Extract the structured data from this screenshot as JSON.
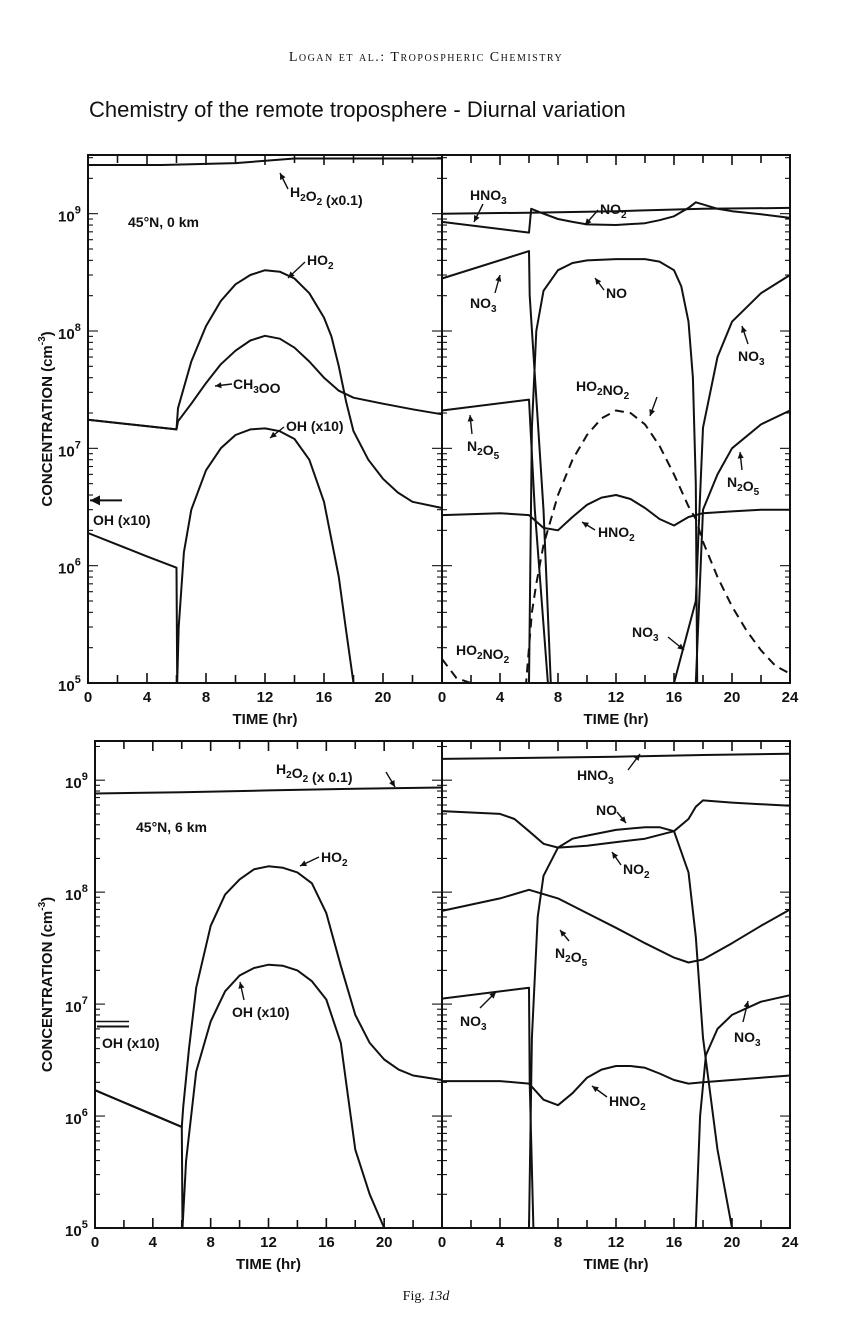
{
  "header": "Logan et al.: Tropospheric Chemistry",
  "title": "Chemistry of the remote troposphere - Diurnal variation",
  "caption": {
    "prefix": "Fig.",
    "number": "13d"
  },
  "chart_data": [
    {
      "type": "line",
      "panel": "top-left",
      "annotation": "45°N, 0 km",
      "xlabel": "TIME (hr)",
      "ylabel": "CONCENTRATION (cm-3)",
      "xlim": [
        0,
        24
      ],
      "ylim_log10": [
        5,
        9.5
      ],
      "yscale": "log",
      "xticks": [
        0,
        4,
        8,
        12,
        16,
        20
      ],
      "yticks": [
        {
          "exp": 5,
          "label": "10",
          "sup": "5"
        },
        {
          "exp": 6,
          "label": "10",
          "sup": "6"
        },
        {
          "exp": 7,
          "label": "10",
          "sup": "7"
        },
        {
          "exp": 8,
          "label": "10",
          "sup": "8"
        },
        {
          "exp": 9,
          "label": "10",
          "sup": "9"
        }
      ],
      "marker": {
        "name": "OH (x10) mean",
        "y": 3600000.0
      },
      "series": [
        {
          "name": "H2O2 (x0.1)",
          "style": "solid",
          "x": [
            0,
            5,
            10,
            14,
            18,
            24
          ],
          "y": [
            2600000000.0,
            2600000000.0,
            2700000000.0,
            2950000000.0,
            2950000000.0,
            2950000000.0
          ]
        },
        {
          "name": "HO2",
          "style": "solid",
          "x": [
            0,
            6,
            6.1,
            7,
            8,
            9,
            10,
            11,
            12,
            13,
            14,
            15,
            16,
            16.5,
            17,
            17.5,
            18,
            19,
            20,
            21,
            22,
            24
          ],
          "y": [
            17500000.0,
            14500000.0,
            22000000.0,
            55000000.0,
            110000000.0,
            180000000.0,
            250000000.0,
            300000000.0,
            330000000.0,
            320000000.0,
            280000000.0,
            210000000.0,
            130000000.0,
            90000000.0,
            50000000.0,
            25000000.0,
            14000000.0,
            8000000.0,
            5500000.0,
            4200000.0,
            3500000.0,
            3100000.0
          ]
        },
        {
          "name": "CH3OO",
          "style": "solid",
          "x": [
            0,
            6,
            6.1,
            7,
            8,
            9,
            10,
            11,
            12,
            13,
            14,
            15,
            16,
            17,
            18,
            20,
            22,
            24
          ],
          "y": [
            17500000.0,
            14500000.0,
            17000000.0,
            24000000.0,
            36000000.0,
            52000000.0,
            68000000.0,
            83000000.0,
            91000000.0,
            86000000.0,
            72000000.0,
            55000000.0,
            40000000.0,
            31000000.0,
            27000000.0,
            24000000.0,
            21500000.0,
            19500000.0
          ]
        },
        {
          "name": "OH (x10)",
          "style": "solid",
          "x": [
            0,
            4,
            6,
            6.05,
            6.15,
            6.5,
            7,
            8,
            9,
            10,
            11,
            12,
            13,
            14,
            15,
            16,
            17,
            17.5,
            18
          ],
          "y": [
            1900000.0,
            1200000.0,
            960000.0,
            100000.0,
            300000.0,
            1300000.0,
            3000000.0,
            6500000.0,
            10000000.0,
            13000000.0,
            14500000.0,
            14800000.0,
            14000000.0,
            12000000.0,
            8000000.0,
            3500000.0,
            800000.0,
            280000.0,
            100000.0
          ]
        }
      ],
      "labels": [
        {
          "text": "H2O2 (x0.1)"
        },
        {
          "text": "HO2"
        },
        {
          "text": "CH3OO"
        },
        {
          "text": "OH (x10)"
        },
        {
          "text": "OH (x10)"
        }
      ]
    },
    {
      "type": "line",
      "panel": "top-right",
      "xlabel": "TIME (hr)",
      "xlim": [
        0,
        24
      ],
      "ylim_log10": [
        5,
        9.5
      ],
      "yscale": "log",
      "xticks": [
        0,
        4,
        8,
        12,
        16,
        20,
        24
      ],
      "series": [
        {
          "name": "HNO3",
          "style": "solid",
          "x": [
            0,
            6,
            12,
            18,
            24
          ],
          "y": [
            1000000000.0,
            1020000000.0,
            1050000000.0,
            1100000000.0,
            1120000000.0
          ]
        },
        {
          "name": "NO2",
          "style": "solid",
          "x": [
            0,
            6,
            6.15,
            7,
            8,
            9,
            10,
            12,
            14,
            15,
            16,
            17,
            17.5,
            18,
            19,
            20,
            22,
            24
          ],
          "y": [
            850000000.0,
            690000000.0,
            1100000000.0,
            1000000000.0,
            900000000.0,
            850000000.0,
            810000000.0,
            800000000.0,
            830000000.0,
            880000000.0,
            950000000.0,
            1120000000.0,
            1250000000.0,
            1200000000.0,
            1100000000.0,
            1050000000.0,
            990000000.0,
            920000000.0
          ]
        },
        {
          "name": "NO",
          "style": "solid",
          "x": [
            6.0,
            6.2,
            6.5,
            7,
            8,
            9,
            10,
            12,
            14,
            15,
            16,
            16.5,
            17,
            17.3,
            17.5,
            17.6
          ],
          "y": [
            100000.0,
            15000000.0,
            100000000.0,
            220000000.0,
            330000000.0,
            380000000.0,
            400000000.0,
            410000000.0,
            410000000.0,
            390000000.0,
            330000000.0,
            240000000.0,
            120000000.0,
            40000000.0,
            5000000.0,
            100000.0
          ]
        },
        {
          "name": "NO3 (night, before sunrise)",
          "style": "solid",
          "x": [
            0,
            6,
            6.05,
            7,
            7.5
          ],
          "y": [
            280000000.0,
            480000000.0,
            200000000.0,
            3000000.0,
            100000.0
          ]
        },
        {
          "name": "NO3 (after sunset)",
          "style": "solid",
          "x": [
            16,
            17.5,
            17.7,
            18,
            19,
            20,
            22,
            24
          ],
          "y": [
            100000.0,
            500000.0,
            2000000.0,
            15000000.0,
            60000000.0,
            120000000.0,
            210000000.0,
            300000000.0
          ]
        },
        {
          "name": "N2O5 (before sunrise)",
          "style": "solid",
          "x": [
            0,
            6,
            6.4,
            7.3
          ],
          "y": [
            21000000.0,
            26000000.0,
            3000000.0,
            100000.0
          ]
        },
        {
          "name": "N2O5 (after sunset)",
          "style": "solid",
          "x": [
            17.5,
            18,
            19,
            20,
            22,
            24
          ],
          "y": [
            100000.0,
            3000000.0,
            6000000.0,
            10000000.0,
            16000000.0,
            21000000.0
          ]
        },
        {
          "name": "HNO2",
          "style": "solid",
          "x": [
            0,
            4,
            6,
            7,
            8,
            9,
            10,
            11,
            12,
            13,
            14,
            15,
            16,
            17,
            18,
            20,
            22,
            24
          ],
          "y": [
            2700000.0,
            2800000.0,
            2700000.0,
            2100000.0,
            2000000.0,
            2600000.0,
            3300000.0,
            3800000.0,
            4000000.0,
            3700000.0,
            3100000.0,
            2500000.0,
            2200000.0,
            2600000.0,
            2800000.0,
            2900000.0,
            3000000.0,
            3000000.0
          ]
        },
        {
          "name": "HO2NO2 (dashed)",
          "style": "dashed",
          "x": [
            0,
            1,
            2,
            3,
            4,
            5,
            5.8,
            6.0,
            6.2,
            6.5,
            7,
            8,
            9,
            10,
            11,
            12,
            13,
            14,
            15,
            16,
            17,
            17.5,
            18,
            19,
            20,
            21,
            22,
            23,
            24
          ],
          "y": [
            160000.0,
            110000.0,
            90000.0,
            80000.0,
            70000.0,
            60000.0,
            60000.0,
            200000.0,
            400000.0,
            700000.0,
            1500000.0,
            4000000.0,
            8000000.0,
            13000000.0,
            18000000.0,
            21000000.0,
            20000000.0,
            16000000.0,
            10500000.0,
            6000000.0,
            3200000.0,
            2500000.0,
            1600000.0,
            800000.0,
            450000.0,
            280000.0,
            190000.0,
            140000.0,
            120000.0
          ]
        }
      ],
      "labels": [
        {
          "text": "HNO3"
        },
        {
          "text": "NO2"
        },
        {
          "text": "NO3"
        },
        {
          "text": "NO"
        },
        {
          "text": "NO3"
        },
        {
          "text": "HO2NO2"
        },
        {
          "text": "N2O5"
        },
        {
          "text": "N2O5"
        },
        {
          "text": "HNO2"
        },
        {
          "text": "NO3"
        },
        {
          "text": "HO2NO2"
        }
      ]
    },
    {
      "type": "line",
      "panel": "bottom-left",
      "annotation": "45°N, 6 km",
      "xlabel": "TIME (hr)",
      "ylabel": "CONCENTRATION (cm-3)",
      "xlim": [
        0,
        24
      ],
      "ylim_log10": [
        5,
        9.35
      ],
      "yscale": "log",
      "xticks": [
        0,
        4,
        8,
        12,
        16,
        20
      ],
      "yticks": [
        {
          "exp": 5,
          "label": "10",
          "sup": "5"
        },
        {
          "exp": 6,
          "label": "10",
          "sup": "6"
        },
        {
          "exp": 7,
          "label": "10",
          "sup": "7"
        },
        {
          "exp": 8,
          "label": "10",
          "sup": "8"
        },
        {
          "exp": 9,
          "label": "10",
          "sup": "9"
        }
      ],
      "marker": {
        "name": "OH (x10) mean",
        "y": 6300000.0
      },
      "series": [
        {
          "name": "H2O2 (x0.1)",
          "style": "solid",
          "x": [
            0,
            6,
            12,
            18,
            24
          ],
          "y": [
            760000000.0,
            780000000.0,
            810000000.0,
            840000000.0,
            860000000.0
          ]
        },
        {
          "name": "HO2",
          "style": "solid",
          "x": [
            0,
            6,
            6.1,
            6.5,
            7,
            8,
            9,
            10,
            11,
            12,
            13,
            14,
            15,
            16,
            17,
            18,
            19,
            20,
            21,
            22,
            24
          ],
          "y": [
            1700000.0,
            800000.0,
            1200000.0,
            4000000.0,
            14000000.0,
            50000000.0,
            95000000.0,
            130000000.0,
            160000000.0,
            170000000.0,
            165000000.0,
            150000000.0,
            120000000.0,
            65000000.0,
            22000000.0,
            8000000.0,
            4500000.0,
            3200000.0,
            2600000.0,
            2300000.0,
            2100000.0
          ]
        },
        {
          "name": "OH (x10)",
          "style": "solid",
          "x": [
            0,
            6,
            6.05,
            6.3,
            7,
            8,
            9,
            10,
            11,
            12,
            13,
            14,
            15,
            16,
            17,
            17.5,
            18,
            19,
            20
          ],
          "y": [
            1700000.0,
            800000.0,
            100000.0,
            400000.0,
            2500000.0,
            7000000.0,
            13000000.0,
            18000000.0,
            21000000.0,
            22500000.0,
            22000000.0,
            20000000.0,
            16000000.0,
            11000000.0,
            4500000.0,
            1500000.0,
            500000.0,
            200000.0,
            100000.0
          ]
        }
      ],
      "labels": [
        {
          "text": "H2O2 (x 0.1)"
        },
        {
          "text": "HO2"
        },
        {
          "text": "OH (x10)"
        },
        {
          "text": "OH (x10)"
        }
      ]
    },
    {
      "type": "line",
      "panel": "bottom-right",
      "xlabel": "TIME (hr)",
      "xlim": [
        0,
        24
      ],
      "ylim_log10": [
        5,
        9.35
      ],
      "yscale": "log",
      "xticks": [
        0,
        4,
        8,
        12,
        16,
        20,
        24
      ],
      "series": [
        {
          "name": "HNO3",
          "style": "solid",
          "x": [
            0,
            6,
            12,
            18,
            24
          ],
          "y": [
            1550000000.0,
            1580000000.0,
            1620000000.0,
            1680000000.0,
            1720000000.0
          ]
        },
        {
          "name": "NO2",
          "style": "solid",
          "x": [
            0,
            4,
            5,
            6,
            7,
            8,
            10,
            12,
            14,
            16,
            17,
            17.5,
            18,
            20,
            22,
            24
          ],
          "y": [
            530000000.0,
            500000000.0,
            450000000.0,
            350000000.0,
            270000000.0,
            250000000.0,
            260000000.0,
            280000000.0,
            300000000.0,
            350000000.0,
            450000000.0,
            580000000.0,
            660000000.0,
            630000000.0,
            610000000.0,
            590000000.0
          ]
        },
        {
          "name": "NO",
          "style": "solid",
          "x": [
            6.0,
            6.2,
            6.6,
            7,
            8,
            9,
            10,
            12,
            14,
            15,
            16,
            17,
            17.5,
            18,
            19,
            20
          ],
          "y": [
            100000.0,
            5000000.0,
            60000000.0,
            140000000.0,
            250000000.0,
            300000000.0,
            320000000.0,
            360000000.0,
            380000000.0,
            380000000.0,
            350000000.0,
            150000000.0,
            40000000.0,
            5000000.0,
            500000.0,
            100000.0
          ]
        },
        {
          "name": "N2O5",
          "style": "solid",
          "x": [
            0,
            4,
            6,
            8,
            10,
            12,
            14,
            16,
            17,
            18,
            20,
            22,
            24
          ],
          "y": [
            68000000.0,
            88000000.0,
            105000000.0,
            88000000.0,
            65000000.0,
            48000000.0,
            35000000.0,
            26000000.0,
            23500000.0,
            25000000.0,
            35000000.0,
            50000000.0,
            70000000.0
          ]
        },
        {
          "name": "NO3 (before sunrise)",
          "style": "solid",
          "x": [
            0,
            6,
            6.05,
            6.3
          ],
          "y": [
            11200000.0,
            14000000.0,
            2000000.0,
            100000.0
          ]
        },
        {
          "name": "NO3 (after sunset)",
          "style": "solid",
          "x": [
            17.5,
            17.8,
            18.2,
            19,
            20,
            22,
            24
          ],
          "y": [
            100000.0,
            1000000.0,
            3500000.0,
            6000000.0,
            8000000.0,
            10500000.0,
            12000000.0
          ]
        },
        {
          "name": "HNO2",
          "style": "solid",
          "x": [
            0,
            4,
            6,
            7,
            8,
            9,
            10,
            11,
            12,
            13,
            14,
            15,
            16,
            17,
            18,
            20,
            22,
            24
          ],
          "y": [
            2050000.0,
            2050000.0,
            1950000.0,
            1400000.0,
            1250000.0,
            1600000.0,
            2200000.0,
            2600000.0,
            2800000.0,
            2800000.0,
            2700000.0,
            2400000.0,
            2100000.0,
            1950000.0,
            2000000.0,
            2100000.0,
            2200000.0,
            2300000.0
          ]
        }
      ],
      "labels": [
        {
          "text": "HNO3"
        },
        {
          "text": "NO"
        },
        {
          "text": "NO2"
        },
        {
          "text": "N2O5"
        },
        {
          "text": "NO3"
        },
        {
          "text": "NO3"
        },
        {
          "text": "HNO2"
        }
      ]
    }
  ]
}
